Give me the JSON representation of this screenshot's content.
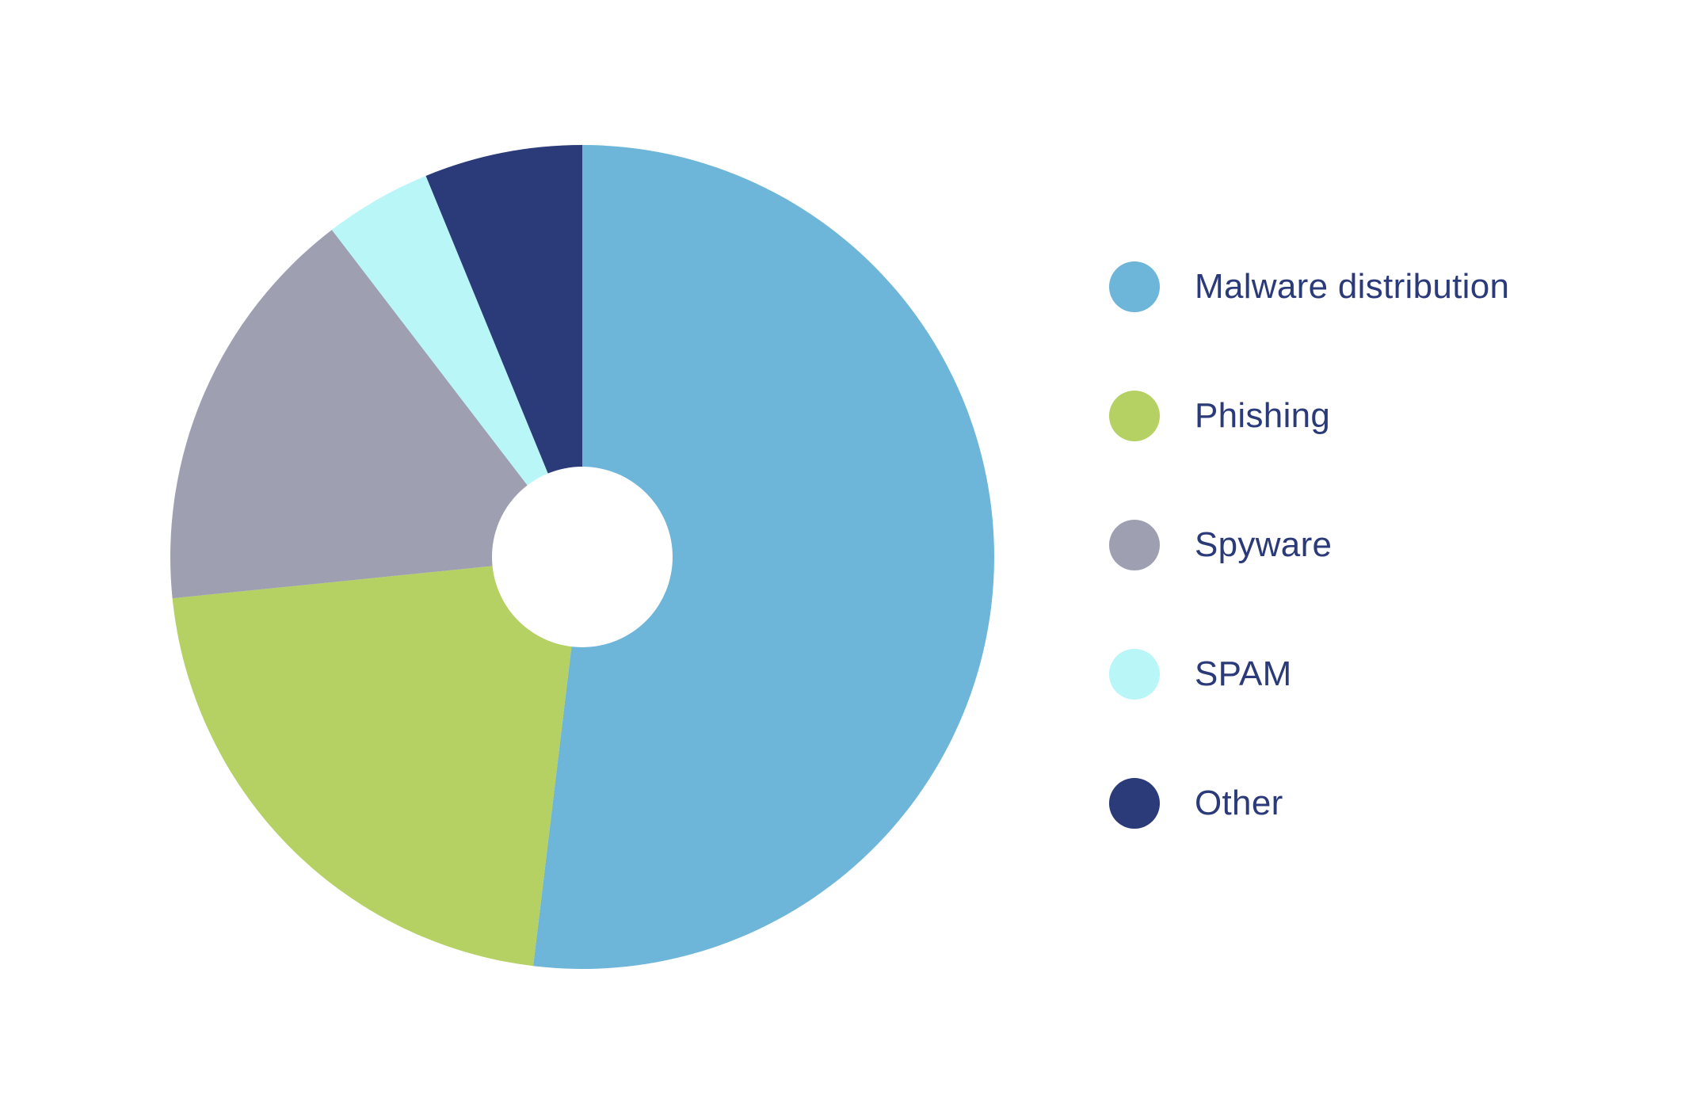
{
  "chart_data": {
    "type": "pie",
    "style": "donut",
    "title": "",
    "series": [
      {
        "name": "Malware distribution",
        "value": 51.9,
        "color": "#6db5d9"
      },
      {
        "name": "Phishing",
        "value": 21.5,
        "color": "#b5d063"
      },
      {
        "name": "Spyware",
        "value": 16.2,
        "color": "#9ea0b2"
      },
      {
        "name": "SPAM",
        "value": 4.2,
        "color": "#b8f6f7"
      },
      {
        "name": "Other",
        "value": 6.2,
        "color": "#2b3a78"
      }
    ],
    "legend_placement": "right",
    "label_color": "#2b3a78"
  }
}
